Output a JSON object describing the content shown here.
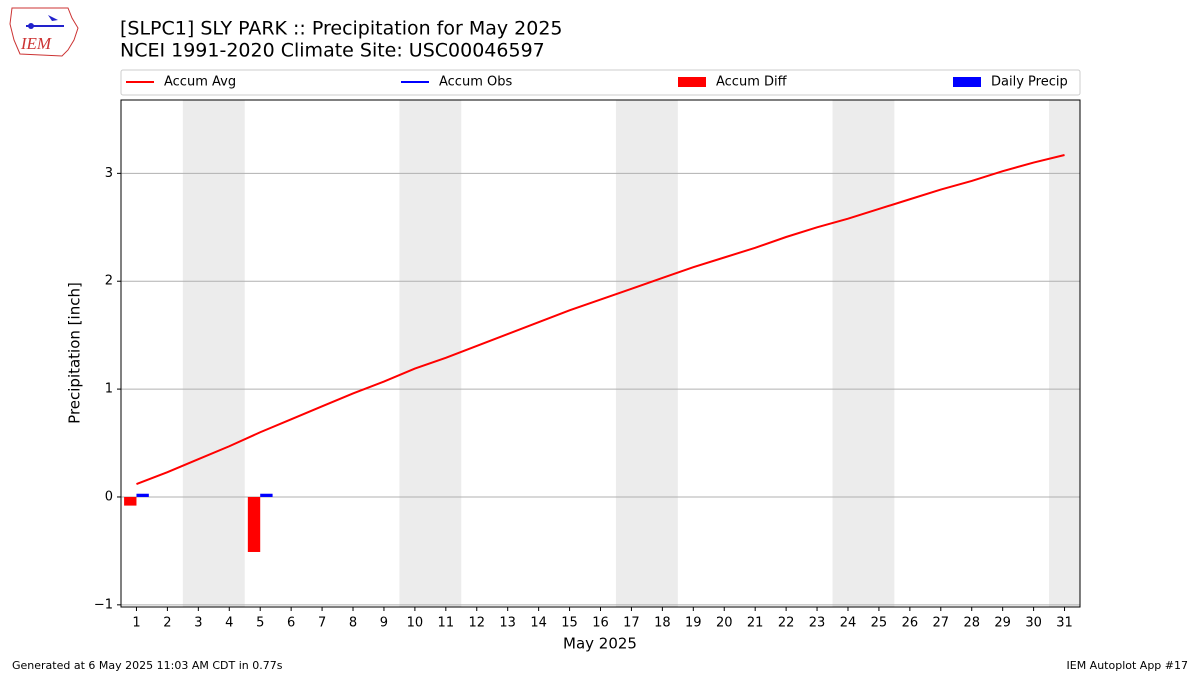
{
  "logo": "IEM",
  "footer_left": "Generated at 6 May 2025 11:03 AM CDT in 0.77s",
  "footer_right": "IEM Autoplot App #17",
  "chart_data": {
    "type": "line",
    "title": "[SLPC1] SLY PARK :: Precipitation for May 2025",
    "subtitle": "NCEI 1991-2020 Climate Site: USC00046597",
    "x_label": "May 2025",
    "y_label": "Precipitation [inch]",
    "x": [
      1,
      2,
      3,
      4,
      5,
      6,
      7,
      8,
      9,
      10,
      11,
      12,
      13,
      14,
      15,
      16,
      17,
      18,
      19,
      20,
      21,
      22,
      23,
      24,
      25,
      26,
      27,
      28,
      29,
      30,
      31
    ],
    "xlim": [
      0.5,
      31.5
    ],
    "xticks": [
      1,
      2,
      3,
      4,
      5,
      6,
      7,
      8,
      9,
      10,
      11,
      12,
      13,
      14,
      15,
      16,
      17,
      18,
      19,
      20,
      21,
      22,
      23,
      24,
      25,
      26,
      27,
      28,
      29,
      30,
      31
    ],
    "ylim": [
      -1.02,
      3.68
    ],
    "yticks": [
      {
        "value": -1,
        "label": "−1"
      },
      0,
      1,
      2,
      3
    ],
    "grid": true,
    "shaded_ranges": [
      [
        2.5,
        4.5
      ],
      [
        9.5,
        11.5
      ],
      [
        16.5,
        18.5
      ],
      [
        23.5,
        25.5
      ],
      [
        30.5,
        31.5
      ]
    ],
    "series": [
      {
        "name": "Accum Avg",
        "style": "line",
        "color": "#ff0000",
        "values": [
          0.12,
          0.23,
          0.35,
          0.47,
          0.6,
          0.72,
          0.84,
          0.96,
          1.07,
          1.19,
          1.29,
          1.4,
          1.51,
          1.62,
          1.73,
          1.83,
          1.93,
          2.03,
          2.13,
          2.22,
          2.31,
          2.41,
          2.5,
          2.58,
          2.67,
          2.76,
          2.85,
          2.93,
          3.02,
          3.1,
          3.17
        ]
      },
      {
        "name": "Accum Obs",
        "style": "line",
        "color": "#0000ff",
        "values": [
          null,
          null,
          null,
          null,
          null,
          null,
          null,
          null,
          null,
          null,
          null,
          null,
          null,
          null,
          null,
          null,
          null,
          null,
          null,
          null,
          null,
          null,
          null,
          null,
          null,
          null,
          null,
          null,
          null,
          null,
          null
        ]
      },
      {
        "name": "Accum Diff",
        "style": "bar",
        "color": "#ff0000",
        "values": [
          -0.08,
          null,
          null,
          null,
          -0.51,
          null,
          null,
          null,
          null,
          null,
          null,
          null,
          null,
          null,
          null,
          null,
          null,
          null,
          null,
          null,
          null,
          null,
          null,
          null,
          null,
          null,
          null,
          null,
          null,
          null,
          null
        ]
      },
      {
        "name": "Daily Precip",
        "style": "bar",
        "color": "#0000ff",
        "values": [
          0.03,
          null,
          null,
          null,
          0.03,
          null,
          null,
          null,
          null,
          null,
          null,
          null,
          null,
          null,
          null,
          null,
          null,
          null,
          null,
          null,
          null,
          null,
          null,
          null,
          null,
          null,
          null,
          null,
          null,
          null,
          null
        ]
      }
    ]
  }
}
